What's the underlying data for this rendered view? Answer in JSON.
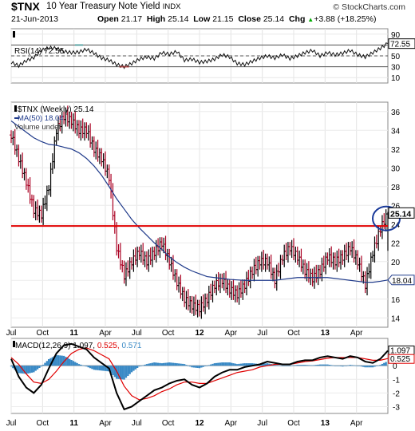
{
  "header": {
    "symbol": "$TNX",
    "title": "10 Year Treasury Note Yield",
    "exchange": "INDX",
    "brand": "© StockCharts.com",
    "date": "21-Jun-2013",
    "open_label": "Open",
    "open": "21.17",
    "high_label": "High",
    "high": "25.14",
    "low_label": "Low",
    "low": "21.15",
    "close_label": "Close",
    "close": "25.14",
    "chg_label": "Chg",
    "chg": "+3.88 (+18.25%)",
    "chg_arrow": "▲"
  },
  "colors": {
    "price_bar": "#aa0022",
    "ma": "#1f3a8a",
    "hline": "#e00000",
    "macd_hist": "#3a8ac6",
    "macd_signal": "#e00000",
    "macd_line": "#000000"
  },
  "chart_data": [
    {
      "type": "line",
      "panel": "rsi",
      "legend": "RSI(14) 72.55",
      "last_label": "72.55",
      "ylim": [
        0,
        100
      ],
      "yticks": [
        "90",
        "70",
        "50",
        "30",
        "10"
      ],
      "reference_lines": [
        70,
        50,
        30
      ],
      "x": [
        0,
        4,
        8,
        12,
        16,
        20,
        24,
        28,
        32,
        36,
        40,
        44,
        48,
        52,
        56,
        60,
        64,
        68,
        72,
        76,
        80,
        84,
        88,
        92,
        96,
        100,
        104,
        108,
        112,
        116,
        120,
        124,
        128,
        132,
        136,
        140,
        144,
        148,
        152,
        156,
        160,
        164,
        168,
        172,
        176,
        180,
        184,
        188,
        192,
        196,
        200
      ],
      "values": [
        38,
        32,
        41,
        47,
        60,
        65,
        64,
        58,
        56,
        57,
        62,
        55,
        46,
        42,
        34,
        30,
        36,
        44,
        48,
        45,
        56,
        53,
        58,
        42,
        44,
        38,
        40,
        44,
        52,
        48,
        36,
        34,
        40,
        46,
        50,
        46,
        52,
        45,
        50,
        56,
        60,
        50,
        56,
        52,
        55,
        60,
        52,
        48,
        56,
        64,
        73
      ]
    },
    {
      "type": "ohlc",
      "panel": "price",
      "legend": [
        "$TNX (Weekly) 25.14",
        "MA(50) 18.04",
        "Volume undef"
      ],
      "ylim": [
        13,
        37
      ],
      "yticks": [
        "36",
        "34",
        "32",
        "30",
        "28",
        "26",
        "24",
        "22",
        "20",
        "18",
        "16",
        "14"
      ],
      "last_price_label": "25.14",
      "ma_label": "18.04",
      "horizontal_line": 23.8,
      "x_labels": [
        {
          "label": "Jul",
          "x": 0
        },
        {
          "label": "Oct",
          "x": 13
        },
        {
          "label": "11",
          "x": 26
        },
        {
          "label": "Apr",
          "x": 39
        },
        {
          "label": "Jul",
          "x": 52
        },
        {
          "label": "Oct",
          "x": 65
        },
        {
          "label": "12",
          "x": 78
        },
        {
          "label": "Apr",
          "x": 91
        },
        {
          "label": "Jul",
          "x": 104
        },
        {
          "label": "Oct",
          "x": 117
        },
        {
          "label": "13",
          "x": 130
        },
        {
          "label": "Apr",
          "x": 143
        }
      ],
      "x": [
        0,
        4,
        8,
        12,
        16,
        20,
        24,
        28,
        32,
        36,
        40,
        44,
        48,
        52,
        56,
        60,
        64,
        68,
        72,
        76,
        80,
        84,
        88,
        92,
        96,
        100,
        104,
        108,
        112,
        116,
        120,
        124,
        128,
        132,
        136,
        140,
        144,
        148,
        152,
        156,
        160,
        164,
        168,
        172,
        176,
        180,
        184,
        188,
        192,
        196,
        200
      ],
      "close": [
        33.5,
        31,
        28.5,
        25.5,
        25,
        28,
        34,
        35.5,
        35,
        34,
        34,
        32,
        31,
        29,
        21.5,
        18.5,
        20,
        21,
        20,
        21,
        22,
        20,
        17.8,
        16,
        15.3,
        15,
        16,
        17.5,
        18,
        17,
        16.5,
        17.5,
        19,
        20,
        20,
        18,
        20.5,
        21.5,
        20.5,
        19,
        18.2,
        19,
        20.5,
        20,
        20.5,
        21.5,
        20,
        17.5,
        21,
        23.5,
        25.14
      ],
      "ma": [
        35,
        34.4,
        33.8,
        33.2,
        32.8,
        32.5,
        32.4,
        32.2,
        32,
        31.6,
        31,
        30.2,
        29.2,
        28,
        26.7,
        25.6,
        24.5,
        23.6,
        22.8,
        22,
        21.3,
        20.5,
        19.9,
        19.4,
        19,
        18.7,
        18.4,
        18.3,
        18.2,
        18.1,
        18.05,
        18,
        18,
        18,
        18,
        18,
        18.1,
        18.2,
        18.3,
        18.3,
        18.3,
        18.3,
        18.3,
        18.2,
        18.1,
        18,
        17.9,
        17.8,
        17.8,
        17.9,
        18.04
      ]
    },
    {
      "type": "line",
      "panel": "macd",
      "legend_prefix": "MACD(12,26,9)",
      "macd_value": "1.097",
      "signal_value": "0.525",
      "hist_value": "0.571",
      "last_macd_label": "1.097",
      "last_signal_label": "0.525",
      "ylim": [
        -3.5,
        2
      ],
      "yticks": [
        "1",
        "0",
        "-1",
        "-2",
        "-3"
      ],
      "x": [
        0,
        4,
        8,
        12,
        16,
        20,
        24,
        28,
        32,
        36,
        40,
        44,
        48,
        52,
        56,
        60,
        64,
        68,
        72,
        76,
        80,
        84,
        88,
        92,
        96,
        100,
        104,
        108,
        112,
        116,
        120,
        124,
        128,
        132,
        136,
        140,
        144,
        148,
        152,
        156,
        160,
        164,
        168,
        172,
        176,
        180,
        184,
        188,
        192,
        196,
        200
      ],
      "macd": [
        0.5,
        -0.8,
        -1.6,
        -2,
        -1.4,
        -0.2,
        0.9,
        1.5,
        1.6,
        1.4,
        1.2,
        0.6,
        0.2,
        -0.2,
        -2,
        -3.2,
        -3,
        -2.6,
        -2.2,
        -1.8,
        -1.6,
        -1.3,
        -1.1,
        -1,
        -1.4,
        -1.6,
        -1.3,
        -0.8,
        -0.5,
        -0.3,
        -0.3,
        -0.1,
        0,
        0.1,
        0.3,
        0.2,
        0.1,
        0.1,
        0.3,
        0.4,
        0.4,
        0.6,
        0.7,
        0.6,
        0.5,
        0.7,
        0.6,
        0.3,
        0.2,
        0.5,
        1.097
      ],
      "signal": [
        0.6,
        0.1,
        -0.6,
        -1.2,
        -1.3,
        -1,
        -0.4,
        0.3,
        0.9,
        1.2,
        1.3,
        1.1,
        0.8,
        0.5,
        -0.4,
        -1.5,
        -2.2,
        -2.5,
        -2.4,
        -2.2,
        -1.9,
        -1.7,
        -1.4,
        -1.2,
        -1.2,
        -1.3,
        -1.3,
        -1.1,
        -0.9,
        -0.7,
        -0.5,
        -0.4,
        -0.3,
        -0.1,
        0,
        0.1,
        0.1,
        0.1,
        0.2,
        0.3,
        0.35,
        0.45,
        0.55,
        0.6,
        0.6,
        0.6,
        0.6,
        0.5,
        0.4,
        0.4,
        0.525
      ]
    }
  ]
}
